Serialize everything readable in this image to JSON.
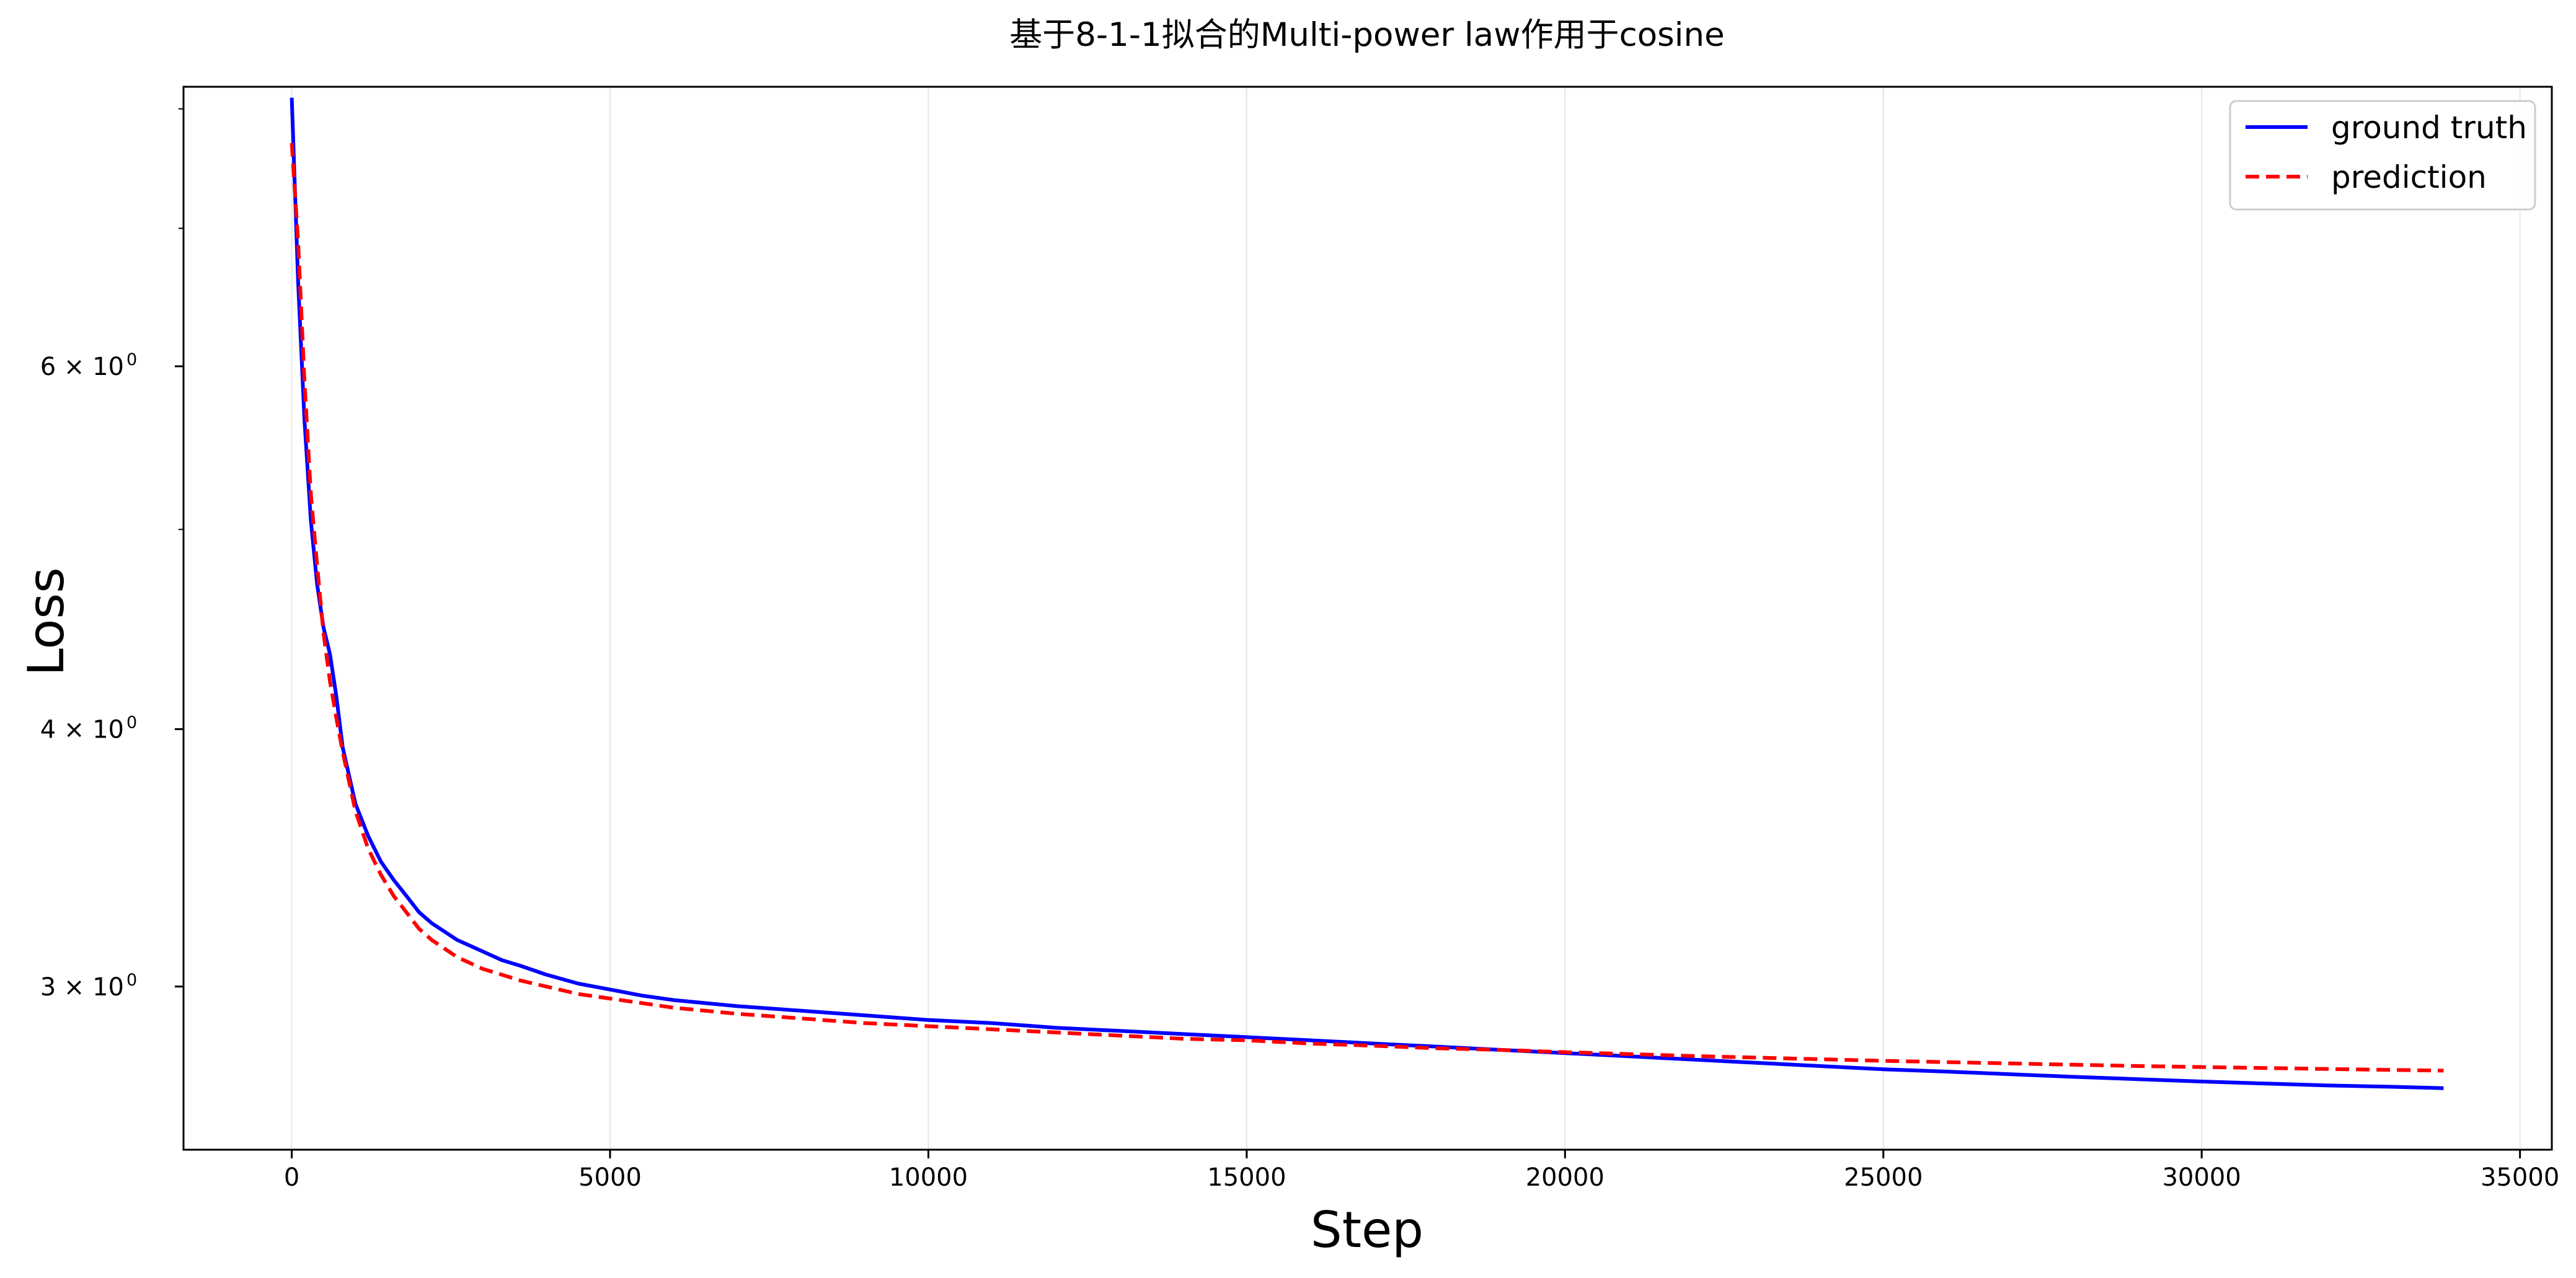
{
  "chart_data": {
    "type": "line",
    "title": "基于8-1-1拟合的Multi-power law作用于cosine",
    "xlabel": "Step",
    "ylabel": "Loss",
    "x_scale": "linear",
    "y_scale": "log",
    "xlim": [
      -1700,
      35500
    ],
    "ylim": [
      2.5,
      8.2
    ],
    "x_ticks": [
      0,
      5000,
      10000,
      15000,
      20000,
      25000,
      30000,
      35000
    ],
    "x_tick_labels": [
      "0",
      "5000",
      "10000",
      "15000",
      "20000",
      "25000",
      "30000",
      "35000"
    ],
    "y_ticks": [
      6,
      4,
      3
    ],
    "y_tick_labels": [
      "6 × 10",
      "4 × 10",
      "3 × 10"
    ],
    "y_tick_exponent": "0",
    "y_minor_ticks": [
      5,
      7,
      8
    ],
    "grid": "x-major",
    "legend_position": "top-right",
    "series": [
      {
        "name": "ground truth",
        "color": "#0000ff",
        "style": "solid",
        "x": [
          0,
          100,
          200,
          300,
          400,
          500,
          600,
          700,
          800,
          1000,
          1200,
          1400,
          1600,
          1800,
          2000,
          2200,
          2400,
          2600,
          2800,
          3000,
          3300,
          3600,
          4000,
          4500,
          5000,
          5500,
          6000,
          7000,
          8000,
          9000,
          10000,
          11000,
          12000,
          13000,
          14000,
          15000,
          16000,
          17000,
          18000,
          19000,
          20000,
          21000,
          22000,
          23000,
          24000,
          25000,
          26000,
          27000,
          28000,
          29000,
          30000,
          31000,
          32000,
          33000,
          33800
        ],
        "y": [
          8.1,
          6.6,
          5.65,
          5.05,
          4.7,
          4.48,
          4.35,
          4.15,
          3.92,
          3.68,
          3.55,
          3.45,
          3.38,
          3.32,
          3.26,
          3.22,
          3.19,
          3.16,
          3.14,
          3.12,
          3.09,
          3.07,
          3.04,
          3.01,
          2.99,
          2.97,
          2.955,
          2.935,
          2.92,
          2.905,
          2.89,
          2.88,
          2.865,
          2.855,
          2.845,
          2.835,
          2.825,
          2.815,
          2.805,
          2.795,
          2.785,
          2.775,
          2.765,
          2.755,
          2.745,
          2.735,
          2.728,
          2.72,
          2.712,
          2.705,
          2.698,
          2.692,
          2.686,
          2.682,
          2.678
        ]
      },
      {
        "name": "prediction",
        "color": "#ff0000",
        "style": "dashed",
        "x": [
          0,
          100,
          200,
          300,
          400,
          500,
          600,
          700,
          800,
          1000,
          1200,
          1400,
          1600,
          1800,
          2000,
          2200,
          2400,
          2600,
          2800,
          3000,
          3300,
          3600,
          4000,
          4500,
          5000,
          5500,
          6000,
          7000,
          8000,
          9000,
          10000,
          11000,
          12000,
          13000,
          14000,
          15000,
          16000,
          17000,
          18000,
          19000,
          20000,
          21000,
          22000,
          23000,
          24000,
          25000,
          26000,
          27000,
          28000,
          29000,
          30000,
          31000,
          32000,
          33000,
          33800
        ],
        "y": [
          7.7,
          6.9,
          5.9,
          5.2,
          4.8,
          4.45,
          4.22,
          4.05,
          3.9,
          3.65,
          3.5,
          3.4,
          3.32,
          3.26,
          3.2,
          3.16,
          3.13,
          3.1,
          3.08,
          3.06,
          3.04,
          3.02,
          3.0,
          2.975,
          2.96,
          2.945,
          2.93,
          2.91,
          2.895,
          2.88,
          2.87,
          2.86,
          2.85,
          2.84,
          2.83,
          2.825,
          2.815,
          2.808,
          2.8,
          2.795,
          2.788,
          2.782,
          2.776,
          2.771,
          2.766,
          2.761,
          2.757,
          2.753,
          2.749,
          2.745,
          2.742,
          2.739,
          2.736,
          2.733,
          2.731
        ]
      }
    ]
  }
}
